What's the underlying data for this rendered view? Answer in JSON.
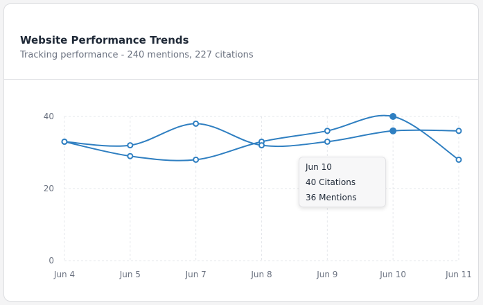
{
  "header": {
    "title": "Website Performance Trends",
    "subtitle": "Tracking performance - 240 mentions, 227 citations"
  },
  "chart_data": {
    "type": "line",
    "categories": [
      "Jun 4",
      "Jun 5",
      "Jun 7",
      "Jun 8",
      "Jun 9",
      "Jun 10",
      "Jun 11"
    ],
    "series": [
      {
        "name": "Citations",
        "values": [
          33,
          29,
          28,
          33,
          36,
          40,
          28
        ]
      },
      {
        "name": "Mentions",
        "values": [
          33,
          32,
          38,
          32,
          33,
          36,
          36
        ]
      }
    ],
    "yticks": [
      0,
      20,
      40
    ],
    "ylim": [
      0,
      40
    ],
    "grid": true,
    "color": "#2f7fc1",
    "highlight_index": 5
  },
  "tooltip": {
    "date": "Jun 10",
    "line1": "40 Citations",
    "line2": "36 Mentions"
  }
}
